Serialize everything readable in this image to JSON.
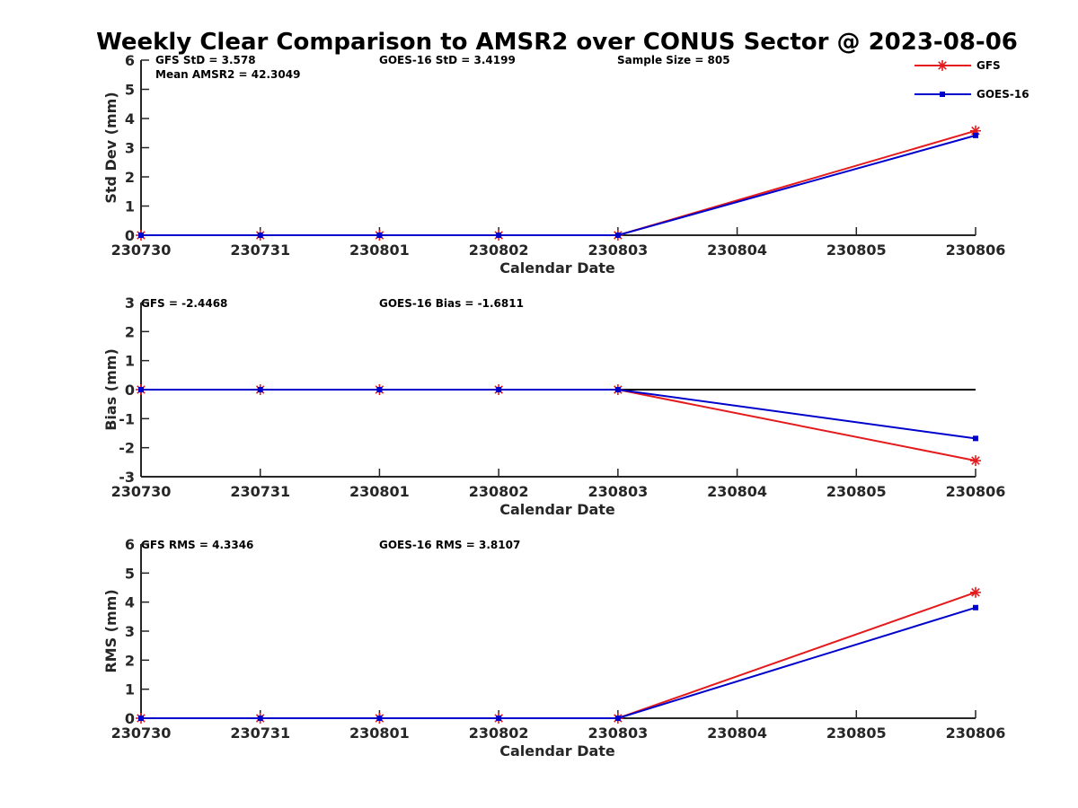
{
  "title": "Weekly Clear Comparison to AMSR2 over CONUS Sector @ 2023-08-06",
  "colors": {
    "GFS": "#e41a1c",
    "GOES-16": "#0000cc",
    "zero_line": "#000000"
  },
  "legend": [
    {
      "name": "GFS",
      "marker": "asterisk"
    },
    {
      "name": "GOES-16",
      "marker": "square"
    }
  ],
  "chart_data": [
    {
      "type": "line",
      "title": "",
      "xlabel": "Calendar Date",
      "ylabel": "Std Dev (mm)",
      "x": [
        "230730",
        "230731",
        "230801",
        "230802",
        "230803",
        "230804",
        "230805",
        "230806"
      ],
      "ylim": [
        0,
        6
      ],
      "yticks": [
        "0",
        "1",
        "2",
        "3",
        "4",
        "5",
        "6"
      ],
      "series": [
        {
          "name": "GFS",
          "points": [
            [
              "230730",
              0
            ],
            [
              "230731",
              0
            ],
            [
              "230801",
              0
            ],
            [
              "230802",
              0
            ],
            [
              "230803",
              0
            ],
            [
              "230806",
              3.578
            ]
          ]
        },
        {
          "name": "GOES-16",
          "points": [
            [
              "230730",
              0
            ],
            [
              "230731",
              0
            ],
            [
              "230801",
              0
            ],
            [
              "230802",
              0
            ],
            [
              "230803",
              0
            ],
            [
              "230806",
              3.4199
            ]
          ]
        }
      ],
      "annotations": [
        "GFS StD = 3.578",
        "Mean AMSR2 = 42.3049",
        "GOES-16 StD = 3.4199",
        "Sample Size = 805"
      ],
      "legend_position": "top-right"
    },
    {
      "type": "line",
      "title": "",
      "xlabel": "Calendar Date",
      "ylabel": "Bias (mm)",
      "x": [
        "230730",
        "230731",
        "230801",
        "230802",
        "230803",
        "230804",
        "230805",
        "230806"
      ],
      "ylim": [
        -3,
        3
      ],
      "yticks": [
        "-3",
        "-2",
        "-1",
        "0",
        "1",
        "2",
        "3"
      ],
      "zero_line": true,
      "series": [
        {
          "name": "GFS",
          "points": [
            [
              "230730",
              0
            ],
            [
              "230731",
              0
            ],
            [
              "230801",
              0
            ],
            [
              "230802",
              0
            ],
            [
              "230803",
              0
            ],
            [
              "230806",
              -2.4468
            ]
          ]
        },
        {
          "name": "GOES-16",
          "points": [
            [
              "230730",
              0
            ],
            [
              "230731",
              0
            ],
            [
              "230801",
              0
            ],
            [
              "230802",
              0
            ],
            [
              "230803",
              0
            ],
            [
              "230806",
              -1.6811
            ]
          ]
        }
      ],
      "annotations": [
        "GFS = -2.4468",
        "GOES-16 Bias  = -1.6811"
      ]
    },
    {
      "type": "line",
      "title": "",
      "xlabel": "Calendar Date",
      "ylabel": "RMS (mm)",
      "x": [
        "230730",
        "230731",
        "230801",
        "230802",
        "230803",
        "230804",
        "230805",
        "230806"
      ],
      "ylim": [
        0,
        6
      ],
      "yticks": [
        "0",
        "1",
        "2",
        "3",
        "4",
        "5",
        "6"
      ],
      "series": [
        {
          "name": "GFS",
          "points": [
            [
              "230730",
              0
            ],
            [
              "230731",
              0
            ],
            [
              "230801",
              0
            ],
            [
              "230802",
              0
            ],
            [
              "230803",
              0
            ],
            [
              "230806",
              4.3346
            ]
          ]
        },
        {
          "name": "GOES-16",
          "points": [
            [
              "230730",
              0
            ],
            [
              "230731",
              0
            ],
            [
              "230801",
              0
            ],
            [
              "230802",
              0
            ],
            [
              "230803",
              0
            ],
            [
              "230806",
              3.8107
            ]
          ]
        }
      ],
      "annotations": [
        "GFS RMS = 4.3346",
        "GOES-16 RMS = 3.8107"
      ]
    }
  ]
}
